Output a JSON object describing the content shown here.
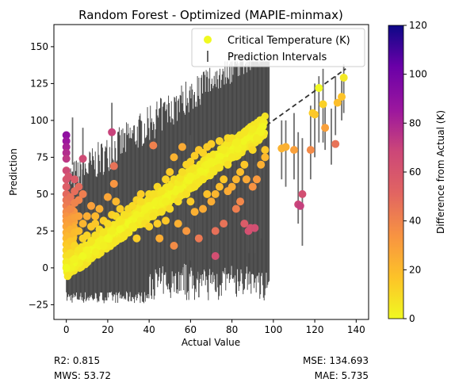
{
  "chart_data": {
    "type": "scatter",
    "title": "Random Forest - Optimized (MAPIE-minmax)",
    "xlabel": "Actual Value",
    "ylabel": "Prediction",
    "xlim": [
      -6,
      146
    ],
    "ylim": [
      -35,
      165
    ],
    "xticks": [
      0,
      20,
      40,
      60,
      80,
      100,
      120,
      140
    ],
    "yticks": [
      -25,
      0,
      25,
      50,
      75,
      100,
      125,
      150
    ],
    "grid": false,
    "legend_position": "top-right",
    "legend": {
      "points": "Critical Temperature (K)",
      "intervals": "Prediction Intervals"
    },
    "colorbar": {
      "label": "Difference from Actual (K)",
      "range": [
        0,
        120
      ],
      "ticks": [
        0,
        20,
        40,
        60,
        80,
        100,
        120
      ],
      "colormap": "plasma_r"
    },
    "reference_line": {
      "type": "identity",
      "from": 0,
      "to": 135,
      "color": "#333333"
    },
    "points": [
      [
        0,
        90
      ],
      [
        0,
        86
      ],
      [
        0,
        82
      ],
      [
        0,
        78
      ],
      [
        0,
        74
      ],
      [
        0,
        66
      ],
      [
        0,
        60
      ],
      [
        0,
        55
      ],
      [
        0,
        50
      ],
      [
        0,
        46
      ],
      [
        0,
        42
      ],
      [
        0,
        38
      ],
      [
        0,
        35
      ],
      [
        0,
        32
      ],
      [
        0,
        28
      ],
      [
        0,
        24
      ],
      [
        0,
        20
      ],
      [
        0,
        16
      ],
      [
        0,
        12
      ],
      [
        0,
        8
      ],
      [
        0,
        4
      ],
      [
        0,
        0
      ],
      [
        1,
        62
      ],
      [
        1,
        45
      ],
      [
        1,
        30
      ],
      [
        1,
        22
      ],
      [
        1,
        15
      ],
      [
        2,
        48
      ],
      [
        2,
        40
      ],
      [
        2,
        33
      ],
      [
        2,
        26
      ],
      [
        2,
        18
      ],
      [
        2,
        10
      ],
      [
        4,
        60
      ],
      [
        4,
        52
      ],
      [
        4,
        44
      ],
      [
        4,
        34
      ],
      [
        4,
        24
      ],
      [
        4,
        15
      ],
      [
        4,
        6
      ],
      [
        6,
        55
      ],
      [
        6,
        46
      ],
      [
        6,
        35
      ],
      [
        6,
        25
      ],
      [
        6,
        12
      ],
      [
        8,
        50
      ],
      [
        8,
        30
      ],
      [
        8,
        20
      ],
      [
        8,
        8
      ],
      [
        8,
        74
      ],
      [
        10,
        35
      ],
      [
        10,
        22
      ],
      [
        10,
        12
      ],
      [
        12,
        28
      ],
      [
        12,
        18
      ],
      [
        12,
        42
      ],
      [
        14,
        30
      ],
      [
        14,
        22
      ],
      [
        14,
        35
      ],
      [
        16,
        26
      ],
      [
        16,
        18
      ],
      [
        16,
        40
      ],
      [
        18,
        32
      ],
      [
        18,
        24
      ],
      [
        18,
        15
      ],
      [
        20,
        30
      ],
      [
        20,
        20
      ],
      [
        20,
        48
      ],
      [
        22,
        92
      ],
      [
        22,
        36
      ],
      [
        22,
        25
      ],
      [
        23,
        69
      ],
      [
        23,
        57
      ],
      [
        24,
        35
      ],
      [
        24,
        18
      ],
      [
        24,
        45
      ],
      [
        26,
        32
      ],
      [
        26,
        26
      ],
      [
        26,
        40
      ],
      [
        28,
        36
      ],
      [
        28,
        22
      ],
      [
        30,
        40
      ],
      [
        30,
        30
      ],
      [
        30,
        24
      ],
      [
        32,
        42
      ],
      [
        32,
        28
      ],
      [
        34,
        46
      ],
      [
        34,
        36
      ],
      [
        34,
        20
      ],
      [
        36,
        45
      ],
      [
        36,
        32
      ],
      [
        36,
        50
      ],
      [
        38,
        30
      ],
      [
        38,
        40
      ],
      [
        40,
        50
      ],
      [
        40,
        42
      ],
      [
        40,
        28
      ],
      [
        42,
        83
      ],
      [
        42,
        50
      ],
      [
        42,
        35
      ],
      [
        44,
        55
      ],
      [
        44,
        30
      ],
      [
        45,
        20
      ],
      [
        46,
        52
      ],
      [
        46,
        38
      ],
      [
        48,
        60
      ],
      [
        48,
        45
      ],
      [
        48,
        32
      ],
      [
        50,
        55
      ],
      [
        50,
        40
      ],
      [
        50,
        65
      ],
      [
        52,
        75
      ],
      [
        52,
        60
      ],
      [
        52,
        15
      ],
      [
        54,
        58
      ],
      [
        54,
        45
      ],
      [
        54,
        30
      ],
      [
        55,
        61
      ],
      [
        56,
        82
      ],
      [
        56,
        65
      ],
      [
        58,
        70
      ],
      [
        58,
        50
      ],
      [
        58,
        25
      ],
      [
        60,
        72
      ],
      [
        60,
        62
      ],
      [
        60,
        45
      ],
      [
        62,
        76
      ],
      [
        62,
        55
      ],
      [
        62,
        38
      ],
      [
        64,
        80
      ],
      [
        64,
        58
      ],
      [
        64,
        20
      ],
      [
        66,
        78
      ],
      [
        66,
        60
      ],
      [
        66,
        40
      ],
      [
        68,
        82
      ],
      [
        68,
        70
      ],
      [
        68,
        50
      ],
      [
        70,
        84
      ],
      [
        70,
        72
      ],
      [
        70,
        45
      ],
      [
        72,
        25
      ],
      [
        72,
        8
      ],
      [
        72,
        50
      ],
      [
        74,
        86
      ],
      [
        74,
        68
      ],
      [
        74,
        55
      ],
      [
        76,
        80
      ],
      [
        76,
        60
      ],
      [
        76,
        30
      ],
      [
        78,
        88
      ],
      [
        78,
        70
      ],
      [
        78,
        52
      ],
      [
        80,
        88
      ],
      [
        80,
        75
      ],
      [
        80,
        55
      ],
      [
        82,
        85
      ],
      [
        82,
        60
      ],
      [
        82,
        40
      ],
      [
        84,
        90
      ],
      [
        84,
        65
      ],
      [
        84,
        45
      ],
      [
        86,
        92
      ],
      [
        86,
        70
      ],
      [
        86,
        30
      ],
      [
        87,
        60
      ],
      [
        88,
        25
      ],
      [
        89,
        27
      ],
      [
        90,
        94
      ],
      [
        90,
        80
      ],
      [
        90,
        55
      ],
      [
        91,
        27
      ],
      [
        92,
        88
      ],
      [
        92,
        60
      ],
      [
        94,
        92
      ],
      [
        94,
        70
      ],
      [
        96,
        80
      ],
      [
        96,
        75
      ],
      [
        104,
        81
      ],
      [
        106,
        82
      ],
      [
        110,
        80
      ],
      [
        112,
        43
      ],
      [
        113,
        42
      ],
      [
        114,
        50
      ],
      [
        118,
        80
      ],
      [
        119,
        105
      ],
      [
        120,
        104
      ],
      [
        122,
        122
      ],
      [
        124,
        111
      ],
      [
        125,
        95
      ],
      [
        130,
        84
      ],
      [
        131,
        112
      ],
      [
        133,
        116
      ],
      [
        134,
        129
      ]
    ],
    "dense_band": {
      "x_range": [
        0,
        96
      ],
      "description": "dense overlapping yellow points along the identity line"
    },
    "interval_columns": {
      "x_range": [
        0,
        98
      ],
      "lower": -24,
      "upper_max": 140
    },
    "sparse_intervals": [
      [
        104,
        60,
        100
      ],
      [
        106,
        55,
        100
      ],
      [
        110,
        60,
        105
      ],
      [
        112,
        30,
        92
      ],
      [
        114,
        15,
        88
      ],
      [
        118,
        60,
        110
      ],
      [
        120,
        75,
        125
      ],
      [
        122,
        85,
        130
      ],
      [
        124,
        85,
        135
      ],
      [
        125,
        80,
        110
      ],
      [
        128,
        70,
        108
      ],
      [
        130,
        90,
        130
      ],
      [
        133,
        100,
        130
      ],
      [
        134,
        105,
        138
      ],
      [
        22,
        55,
        112
      ],
      [
        8,
        55,
        95
      ],
      [
        3,
        70,
        102
      ],
      [
        56,
        -5,
        70
      ],
      [
        60,
        5,
        90
      ],
      [
        64,
        -20,
        40
      ],
      [
        72,
        -15,
        45
      ],
      [
        88,
        10,
        80
      ],
      [
        91,
        10,
        70
      ],
      [
        94,
        20,
        100
      ]
    ]
  },
  "stats": {
    "r2": "R2: 0.815",
    "mws": "MWS: 53.72",
    "mse": "MSE: 134.693",
    "mae": "MAE: 5.735"
  }
}
